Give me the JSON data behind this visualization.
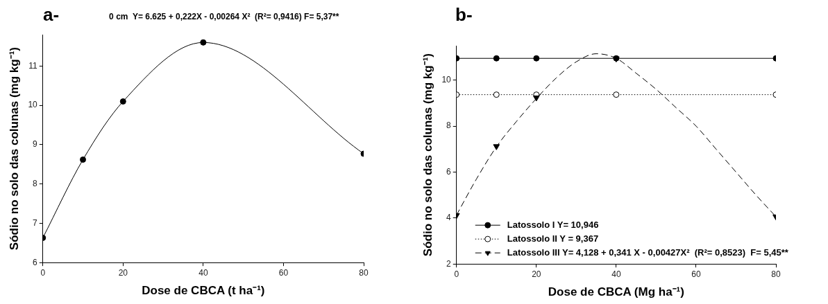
{
  "chart_data": [
    {
      "type": "line",
      "title": "a-",
      "subtitle": "0 cm  Y= 6.625 + 0,222X - 0,00264 X²  (R²= 0,9416) F= 5,37**",
      "xlabel": "Dose de CBCA (t ha⁻¹)",
      "ylabel": "Sódio no solo das colunas (mg kg⁻¹)",
      "xlim": [
        0,
        80
      ],
      "xticks": [
        0,
        20,
        40,
        60,
        80
      ],
      "ylim": [
        6,
        11.8
      ],
      "yticks": [
        6,
        7,
        8,
        9,
        10,
        11
      ],
      "grid": false,
      "legend": false,
      "marker": "circle",
      "line_style": "solid",
      "series": [
        {
          "color": "#000000",
          "x": [
            0,
            10,
            20,
            40,
            80
          ],
          "values": [
            6.63,
            8.62,
            10.1,
            11.6,
            8.77
          ]
        }
      ]
    },
    {
      "type": "line",
      "title": "b-",
      "xlabel": "Dose de CBCA (Mg ha⁻¹)",
      "ylabel": "Sódio no solo das colunas (mg kg⁻¹)",
      "xlim": [
        0,
        80
      ],
      "xticks": [
        0,
        20,
        40,
        60,
        80
      ],
      "ylim": [
        2,
        11.5
      ],
      "yticks": [
        2,
        4,
        6,
        8,
        10
      ],
      "grid": false,
      "legend": "bottom left",
      "series": [
        {
          "name": "Latossolo I Y= 10,946",
          "color": "#000000",
          "marker": "circle",
          "line_style": "solid",
          "x": [
            0,
            10,
            20,
            40,
            80
          ],
          "values": [
            10.95,
            10.95,
            10.95,
            10.95,
            10.95
          ]
        },
        {
          "name": "Latossolo II Y = 9,367",
          "color": "#000000",
          "marker": "circle",
          "line_style": "dotted",
          "x": [
            0,
            10,
            20,
            40,
            80
          ],
          "values": [
            9.37,
            9.37,
            9.37,
            9.37,
            9.37
          ]
        },
        {
          "name": "Latossolo III Y= 4,128 + 0,341 X - 0,00427X²  (R²= 0,8523)  F= 5,45**",
          "type": "scatter",
          "color": "#000000",
          "marker": "triangle",
          "line_style": "dashed",
          "x": [
            0,
            10,
            20,
            40,
            80
          ],
          "values": [
            4.12,
            7.12,
            9.24,
            10.94,
            4.06
          ]
        },
        {
          "type": "line",
          "color": "#000000",
          "marker": "none",
          "line_style": "dashed",
          "x": [
            0,
            5,
            10,
            15,
            20,
            25,
            30,
            35,
            40,
            45,
            50,
            55,
            60,
            65,
            70,
            75,
            80
          ],
          "values": [
            4.13,
            5.7,
            7.1,
            8.2,
            9.2,
            10.1,
            10.8,
            11.15,
            10.95,
            10.3,
            9.6,
            8.8,
            8.0,
            7.0,
            6.0,
            5.0,
            4.06
          ]
        }
      ]
    }
  ]
}
